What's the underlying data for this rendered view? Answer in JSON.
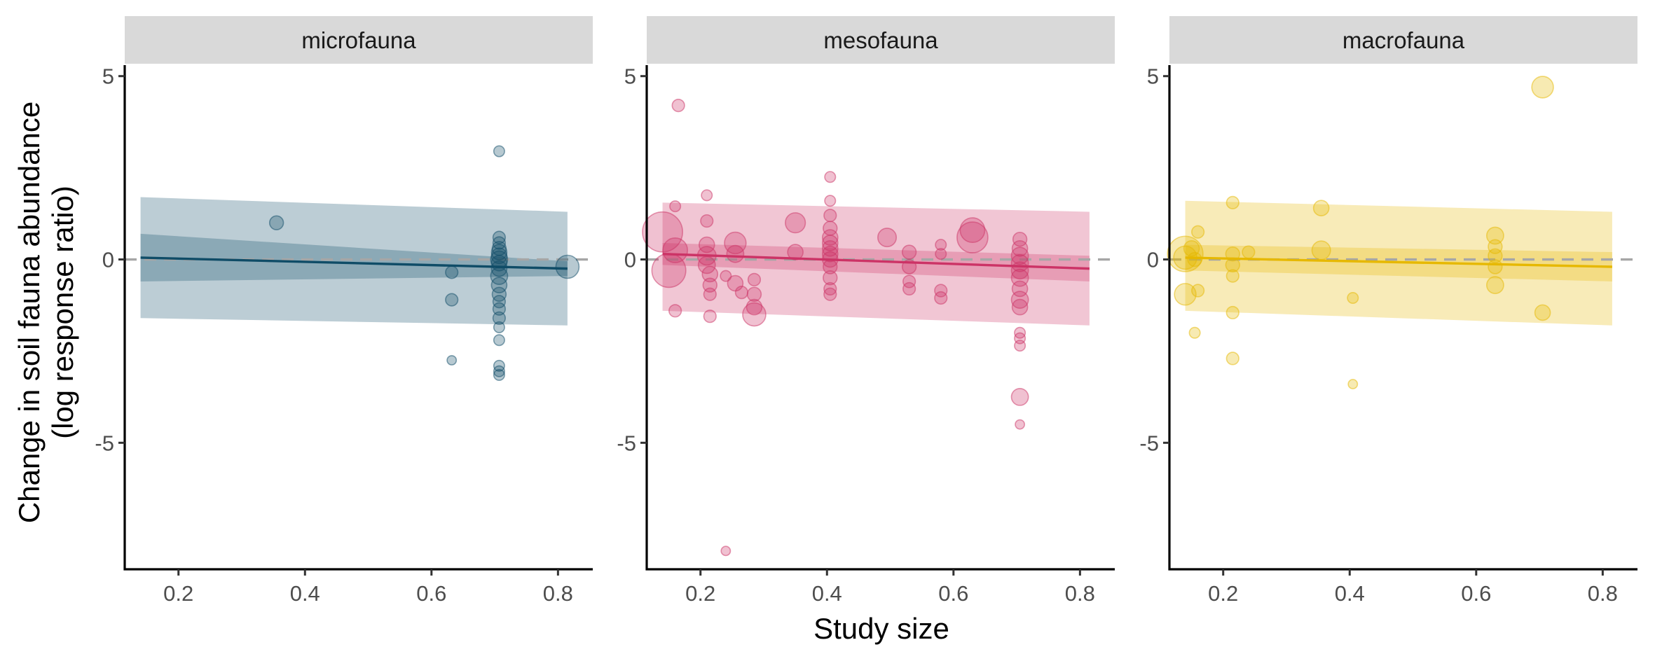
{
  "chart_data": {
    "type": "scatter",
    "xlabel": "Study size",
    "ylabel_lines": [
      "Change in soil fauna abundance",
      "(log response ratio)"
    ],
    "xlim": [
      0.115,
      0.855
    ],
    "ylim": [
      -8.45,
      5.3
    ],
    "x_ticks": [
      0.2,
      0.4,
      0.6,
      0.8
    ],
    "x_tick_labels": [
      "0.2",
      "0.4",
      "0.6",
      "0.8"
    ],
    "y_ticks": [
      5,
      0,
      -5
    ],
    "y_tick_labels": [
      "5",
      "0",
      "-5"
    ],
    "reference_line": {
      "y": 0,
      "style": "dashed",
      "color": "#a6a6a6"
    },
    "grid": false,
    "legend": "none",
    "panels": [
      {
        "strip": "microfauna",
        "color": "#0f4c67",
        "fit": {
          "x": [
            0.14,
            0.815
          ],
          "y": [
            0.05,
            -0.25
          ]
        },
        "ci_inner": {
          "x": [
            0.14,
            0.815
          ],
          "lower": [
            -0.6,
            -0.45
          ],
          "upper": [
            0.7,
            -0.05
          ]
        },
        "ci_outer": {
          "x": [
            0.14,
            0.815
          ],
          "lower": [
            -1.6,
            -1.8
          ],
          "upper": [
            1.7,
            1.3
          ]
        },
        "points": [
          {
            "x": 0.355,
            "y": 1.0,
            "size": 9
          },
          {
            "x": 0.632,
            "y": -0.35,
            "size": 8
          },
          {
            "x": 0.632,
            "y": -1.1,
            "size": 8
          },
          {
            "x": 0.632,
            "y": -2.75,
            "size": 6
          },
          {
            "x": 0.707,
            "y": 2.95,
            "size": 7
          },
          {
            "x": 0.707,
            "y": 0.6,
            "size": 8
          },
          {
            "x": 0.707,
            "y": 0.45,
            "size": 8
          },
          {
            "x": 0.707,
            "y": 0.3,
            "size": 9
          },
          {
            "x": 0.707,
            "y": 0.2,
            "size": 10
          },
          {
            "x": 0.707,
            "y": 0.1,
            "size": 10
          },
          {
            "x": 0.707,
            "y": 0.0,
            "size": 11
          },
          {
            "x": 0.707,
            "y": -0.1,
            "size": 10
          },
          {
            "x": 0.707,
            "y": -0.25,
            "size": 10
          },
          {
            "x": 0.707,
            "y": -0.45,
            "size": 11
          },
          {
            "x": 0.707,
            "y": -0.7,
            "size": 10
          },
          {
            "x": 0.707,
            "y": -0.95,
            "size": 9
          },
          {
            "x": 0.707,
            "y": -1.15,
            "size": 8
          },
          {
            "x": 0.707,
            "y": -1.35,
            "size": 8
          },
          {
            "x": 0.707,
            "y": -1.6,
            "size": 8
          },
          {
            "x": 0.707,
            "y": -1.85,
            "size": 7
          },
          {
            "x": 0.707,
            "y": -2.2,
            "size": 7
          },
          {
            "x": 0.707,
            "y": -2.9,
            "size": 7
          },
          {
            "x": 0.707,
            "y": -3.05,
            "size": 7
          },
          {
            "x": 0.707,
            "y": -3.15,
            "size": 7
          },
          {
            "x": 0.815,
            "y": -0.2,
            "size": 15
          }
        ]
      },
      {
        "strip": "mesofauna",
        "color": "#cc3366",
        "fit": {
          "x": [
            0.14,
            0.815
          ],
          "y": [
            0.15,
            -0.25
          ]
        },
        "ci_inner": {
          "x": [
            0.14,
            0.815
          ],
          "lower": [
            -0.15,
            -0.6
          ],
          "upper": [
            0.45,
            0.1
          ]
        },
        "ci_outer": {
          "x": [
            0.14,
            0.815
          ],
          "lower": [
            -1.4,
            -1.8
          ],
          "upper": [
            1.55,
            1.3
          ]
        },
        "points": [
          {
            "x": 0.14,
            "y": 0.75,
            "size": 26
          },
          {
            "x": 0.15,
            "y": -0.3,
            "size": 22
          },
          {
            "x": 0.16,
            "y": 0.25,
            "size": 16
          },
          {
            "x": 0.165,
            "y": 4.2,
            "size": 8
          },
          {
            "x": 0.16,
            "y": 1.45,
            "size": 7
          },
          {
            "x": 0.16,
            "y": -1.4,
            "size": 8
          },
          {
            "x": 0.21,
            "y": 1.75,
            "size": 7
          },
          {
            "x": 0.21,
            "y": 1.05,
            "size": 8
          },
          {
            "x": 0.21,
            "y": 0.4,
            "size": 10
          },
          {
            "x": 0.21,
            "y": 0.1,
            "size": 12
          },
          {
            "x": 0.21,
            "y": -0.15,
            "size": 11
          },
          {
            "x": 0.215,
            "y": -0.4,
            "size": 10
          },
          {
            "x": 0.215,
            "y": -0.7,
            "size": 9
          },
          {
            "x": 0.215,
            "y": -0.95,
            "size": 8
          },
          {
            "x": 0.215,
            "y": -1.55,
            "size": 8
          },
          {
            "x": 0.24,
            "y": -0.45,
            "size": 7
          },
          {
            "x": 0.24,
            "y": -7.95,
            "size": 6
          },
          {
            "x": 0.255,
            "y": 0.45,
            "size": 14
          },
          {
            "x": 0.255,
            "y": 0.15,
            "size": 11
          },
          {
            "x": 0.255,
            "y": -0.65,
            "size": 10
          },
          {
            "x": 0.265,
            "y": -0.9,
            "size": 8
          },
          {
            "x": 0.285,
            "y": -0.55,
            "size": 8
          },
          {
            "x": 0.285,
            "y": -0.95,
            "size": 9
          },
          {
            "x": 0.285,
            "y": -1.3,
            "size": 10
          },
          {
            "x": 0.285,
            "y": -1.5,
            "size": 15
          },
          {
            "x": 0.35,
            "y": 1.0,
            "size": 13
          },
          {
            "x": 0.35,
            "y": 0.2,
            "size": 10
          },
          {
            "x": 0.405,
            "y": 2.25,
            "size": 7
          },
          {
            "x": 0.405,
            "y": 1.6,
            "size": 7
          },
          {
            "x": 0.405,
            "y": 1.2,
            "size": 8
          },
          {
            "x": 0.405,
            "y": 0.85,
            "size": 9
          },
          {
            "x": 0.405,
            "y": 0.6,
            "size": 10
          },
          {
            "x": 0.405,
            "y": 0.45,
            "size": 10
          },
          {
            "x": 0.405,
            "y": 0.3,
            "size": 10
          },
          {
            "x": 0.405,
            "y": 0.15,
            "size": 10
          },
          {
            "x": 0.405,
            "y": 0.0,
            "size": 10
          },
          {
            "x": 0.405,
            "y": -0.2,
            "size": 9
          },
          {
            "x": 0.405,
            "y": -0.5,
            "size": 9
          },
          {
            "x": 0.405,
            "y": -0.8,
            "size": 8
          },
          {
            "x": 0.405,
            "y": -0.95,
            "size": 8
          },
          {
            "x": 0.495,
            "y": 0.6,
            "size": 12
          },
          {
            "x": 0.53,
            "y": 0.2,
            "size": 9
          },
          {
            "x": 0.53,
            "y": -0.2,
            "size": 9
          },
          {
            "x": 0.53,
            "y": -0.6,
            "size": 8
          },
          {
            "x": 0.53,
            "y": -0.8,
            "size": 8
          },
          {
            "x": 0.58,
            "y": 0.4,
            "size": 7
          },
          {
            "x": 0.58,
            "y": 0.15,
            "size": 7
          },
          {
            "x": 0.58,
            "y": -0.85,
            "size": 8
          },
          {
            "x": 0.58,
            "y": -1.05,
            "size": 8
          },
          {
            "x": 0.63,
            "y": 0.8,
            "size": 16
          },
          {
            "x": 0.63,
            "y": 0.6,
            "size": 20
          },
          {
            "x": 0.705,
            "y": 0.55,
            "size": 9
          },
          {
            "x": 0.705,
            "y": 0.3,
            "size": 10
          },
          {
            "x": 0.705,
            "y": 0.1,
            "size": 11
          },
          {
            "x": 0.705,
            "y": -0.1,
            "size": 11
          },
          {
            "x": 0.705,
            "y": -0.3,
            "size": 11
          },
          {
            "x": 0.705,
            "y": -0.5,
            "size": 11
          },
          {
            "x": 0.705,
            "y": -0.8,
            "size": 10
          },
          {
            "x": 0.705,
            "y": -1.1,
            "size": 11
          },
          {
            "x": 0.705,
            "y": -1.3,
            "size": 10
          },
          {
            "x": 0.705,
            "y": -2.0,
            "size": 7
          },
          {
            "x": 0.705,
            "y": -2.15,
            "size": 7
          },
          {
            "x": 0.705,
            "y": -2.35,
            "size": 7
          },
          {
            "x": 0.705,
            "y": -3.75,
            "size": 11
          },
          {
            "x": 0.705,
            "y": -4.5,
            "size": 6
          }
        ]
      },
      {
        "strip": "macrofauna",
        "color": "#e6b800",
        "fit": {
          "x": [
            0.14,
            0.815
          ],
          "y": [
            0.05,
            -0.2
          ]
        },
        "ci_inner": {
          "x": [
            0.14,
            0.815
          ],
          "lower": [
            -0.3,
            -0.6
          ],
          "upper": [
            0.4,
            0.2
          ]
        },
        "ci_outer": {
          "x": [
            0.14,
            0.815
          ],
          "lower": [
            -1.4,
            -1.8
          ],
          "upper": [
            1.6,
            1.3
          ]
        },
        "points": [
          {
            "x": 0.14,
            "y": 0.15,
            "size": 23
          },
          {
            "x": 0.14,
            "y": 0.05,
            "size": 15
          },
          {
            "x": 0.14,
            "y": -0.95,
            "size": 14
          },
          {
            "x": 0.15,
            "y": 0.3,
            "size": 10
          },
          {
            "x": 0.155,
            "y": 0.0,
            "size": 9
          },
          {
            "x": 0.16,
            "y": 0.75,
            "size": 8
          },
          {
            "x": 0.16,
            "y": -0.85,
            "size": 8
          },
          {
            "x": 0.155,
            "y": -2.0,
            "size": 7
          },
          {
            "x": 0.215,
            "y": 1.55,
            "size": 8
          },
          {
            "x": 0.215,
            "y": 0.15,
            "size": 9
          },
          {
            "x": 0.215,
            "y": -0.15,
            "size": 9
          },
          {
            "x": 0.215,
            "y": -0.45,
            "size": 8
          },
          {
            "x": 0.215,
            "y": -1.45,
            "size": 8
          },
          {
            "x": 0.215,
            "y": -2.7,
            "size": 8
          },
          {
            "x": 0.24,
            "y": 0.2,
            "size": 8
          },
          {
            "x": 0.355,
            "y": 1.4,
            "size": 10
          },
          {
            "x": 0.355,
            "y": 0.25,
            "size": 12
          },
          {
            "x": 0.405,
            "y": -1.05,
            "size": 7
          },
          {
            "x": 0.405,
            "y": -3.4,
            "size": 6
          },
          {
            "x": 0.63,
            "y": 0.65,
            "size": 11
          },
          {
            "x": 0.63,
            "y": 0.35,
            "size": 9
          },
          {
            "x": 0.63,
            "y": 0.1,
            "size": 9
          },
          {
            "x": 0.63,
            "y": -0.2,
            "size": 9
          },
          {
            "x": 0.63,
            "y": -0.7,
            "size": 11
          },
          {
            "x": 0.705,
            "y": 4.7,
            "size": 14
          },
          {
            "x": 0.705,
            "y": -1.45,
            "size": 10
          }
        ]
      }
    ]
  }
}
